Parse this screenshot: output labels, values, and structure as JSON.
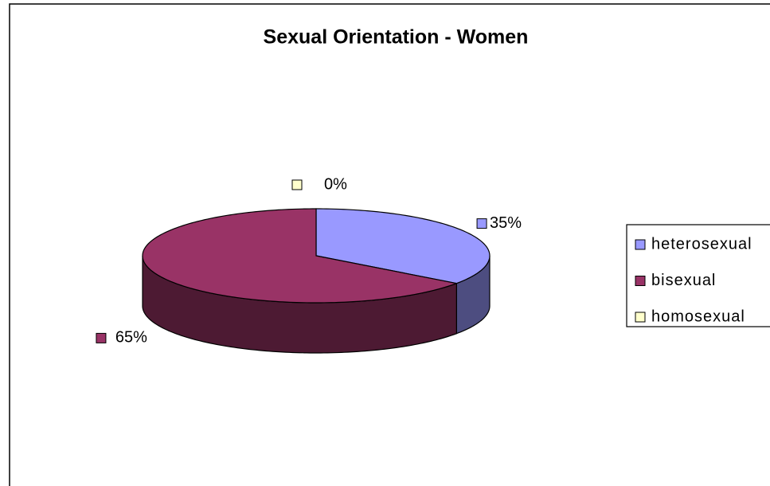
{
  "chart_data": {
    "type": "pie",
    "title": "Sexual Orientation - Women",
    "categories": [
      "heterosexual",
      "bisexual",
      "homosexual"
    ],
    "values": [
      35,
      65,
      0
    ],
    "value_labels": [
      "35%",
      "65%",
      "0%"
    ],
    "colors": [
      "#9999ff",
      "#993366",
      "#ffffcc"
    ],
    "legend": "right",
    "three_d": true
  }
}
